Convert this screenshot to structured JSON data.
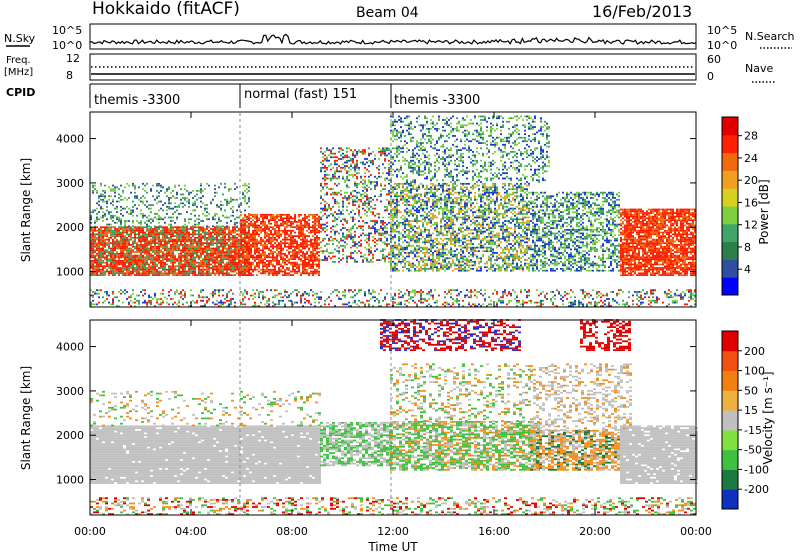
{
  "header": {
    "station": "Hokkaido (fitACF)",
    "beam": "Beam 04",
    "date": "16/Feb/2013"
  },
  "strip_labels": {
    "nsky": "N.Sky",
    "nsearch": "N.Search",
    "freq_top": "Freq.",
    "freq_unit": "[MHz]",
    "cpid": "CPID",
    "nave": "Nave",
    "nsky_ticks": [
      "10^5",
      "10^0"
    ],
    "nsearch_ticks": [
      "10^5",
      "10^0"
    ],
    "freq_ticks": [
      "12",
      "8"
    ],
    "nave_ticks": [
      "60",
      "0"
    ]
  },
  "cpid_segments": [
    {
      "label": "themis -3300",
      "start": "00:00",
      "end": "06:00"
    },
    {
      "label": "normal (fast) 151",
      "start": "06:00",
      "end": "12:00"
    },
    {
      "label": "themis -3300",
      "start": "12:00",
      "end": "24:00"
    }
  ],
  "chart_data": [
    {
      "type": "heatmap",
      "panel": "power",
      "ylabel": "Slant Range [km]",
      "xlabel": "Time UT",
      "x_ticks": [
        "00:00",
        "04:00",
        "08:00",
        "12:00",
        "16:00",
        "20:00",
        "00:00"
      ],
      "y_ticks": [
        "1000",
        "2000",
        "3000",
        "4000"
      ],
      "ylim": [
        200,
        4600
      ],
      "colorbar": {
        "label": "Power [dB]",
        "ticks": [
          "28",
          "24",
          "20",
          "16",
          "12",
          "8",
          "4"
        ],
        "colors": [
          "#0000ff",
          "#2e4fa0",
          "#2a7f4a",
          "#3fa66a",
          "#7fcf40",
          "#d8d020",
          "#f0a020",
          "#f06a10",
          "#ff2000",
          "#e00000"
        ]
      }
    },
    {
      "type": "heatmap",
      "panel": "velocity",
      "ylabel": "Slant Range [km]",
      "xlabel": "Time UT",
      "x_ticks": [
        "00:00",
        "04:00",
        "08:00",
        "12:00",
        "16:00",
        "20:00",
        "00:00"
      ],
      "y_ticks": [
        "1000",
        "2000",
        "3000",
        "4000"
      ],
      "ylim": [
        200,
        4600
      ],
      "colorbar": {
        "label": "Velocity [m s⁻¹]",
        "ticks": [
          "200",
          "100",
          "50",
          "15",
          "-15",
          "-50",
          "-100",
          "-200"
        ],
        "colors": [
          "#1030c0",
          "#1a7a40",
          "#40c040",
          "#80e040",
          "#c0c0c0",
          "#f0b040",
          "#f08010",
          "#f05010",
          "#e00000"
        ]
      }
    }
  ],
  "xaxis_title": "Time UT",
  "colors": {
    "power_strong": "#ff1a00",
    "power_mid": "#3aa060",
    "power_weak": "#1a3bd0",
    "vel_gray": "#c0c0c0",
    "vel_green": "#40c040",
    "vel_orange": "#f09020",
    "vel_red": "#e00000",
    "vel_blue": "#2030c0"
  }
}
